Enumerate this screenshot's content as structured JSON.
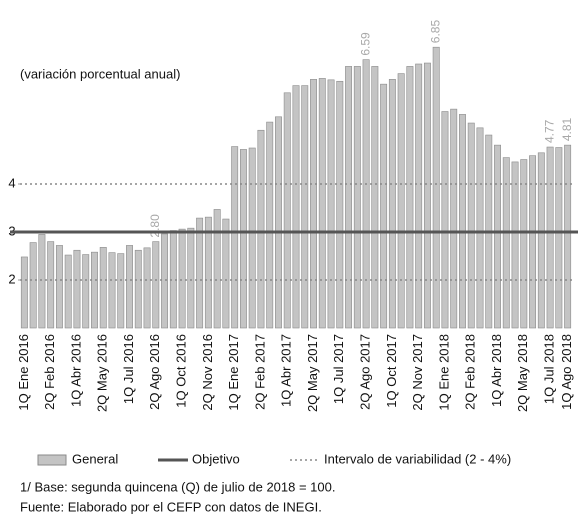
{
  "chart_data": {
    "type": "bar",
    "subtitle": "(variación porcentual anual)",
    "categories": [
      "1Q Ene 2016",
      null,
      null,
      "2Q Feb 2016",
      null,
      null,
      "1Q Abr 2016",
      null,
      null,
      "2Q May 2016",
      null,
      null,
      "1Q Jul 2016",
      null,
      null,
      "2Q Ago 2016",
      null,
      null,
      "1Q Oct 2016",
      null,
      null,
      "2Q Nov 2016",
      null,
      null,
      "1Q Ene 2017",
      null,
      null,
      "2Q Feb 2017",
      null,
      null,
      "1Q Abr 2017",
      null,
      null,
      "2Q May 2017",
      null,
      null,
      "1Q Jul 2017",
      null,
      null,
      "2Q Ago 2017",
      null,
      null,
      "1Q Oct 2017",
      null,
      null,
      "2Q Nov 2017",
      null,
      null,
      "1Q Ene 2018",
      null,
      null,
      "2Q Feb 2018",
      null,
      null,
      "1Q Abr 2018",
      null,
      null,
      "2Q May 2018",
      null,
      null,
      "1Q Jul 2018",
      null,
      "1Q Ago 2018"
    ],
    "series": [
      {
        "name": "General",
        "color": "#c4c4c4",
        "values": [
          2.48,
          2.78,
          2.95,
          2.8,
          2.72,
          2.52,
          2.62,
          2.53,
          2.58,
          2.68,
          2.57,
          2.55,
          2.72,
          2.62,
          2.67,
          2.8,
          2.96,
          3.03,
          3.06,
          3.08,
          3.29,
          3.31,
          3.47,
          3.27,
          4.78,
          4.72,
          4.75,
          5.12,
          5.29,
          5.4,
          5.9,
          6.05,
          6.05,
          6.18,
          6.2,
          6.17,
          6.14,
          6.45,
          6.45,
          6.59,
          6.45,
          6.08,
          6.18,
          6.3,
          6.45,
          6.5,
          6.52,
          6.85,
          5.51,
          5.56,
          5.45,
          5.27,
          5.17,
          5.02,
          4.81,
          4.55,
          4.46,
          4.51,
          4.59,
          4.65,
          4.77,
          4.76,
          4.81
        ],
        "value_labels": [
          null,
          null,
          null,
          null,
          null,
          null,
          null,
          null,
          null,
          null,
          null,
          null,
          null,
          null,
          null,
          "2.80",
          null,
          null,
          null,
          null,
          null,
          null,
          null,
          null,
          null,
          null,
          null,
          null,
          null,
          null,
          null,
          null,
          null,
          null,
          null,
          null,
          null,
          null,
          null,
          "6.59",
          null,
          null,
          null,
          null,
          null,
          null,
          null,
          "6.85",
          null,
          null,
          null,
          null,
          null,
          null,
          null,
          null,
          null,
          null,
          null,
          null,
          "4.77",
          null,
          "4.81"
        ]
      }
    ],
    "reference_line": {
      "name": "Objetivo",
      "value": 3,
      "color": "#555555"
    },
    "interval": {
      "name": "Intervalo de variabilidad (2 - 4%)",
      "values": [
        2,
        4
      ],
      "color": "#888888"
    },
    "ylim": [
      1,
      7
    ],
    "yticks": [
      2,
      3,
      4
    ],
    "notes": [
      "1/ Base: segunda quincena (Q) de julio de 2018 = 100.",
      "Fuente: Elaborado por el CEFP con datos de INEGI."
    ]
  }
}
